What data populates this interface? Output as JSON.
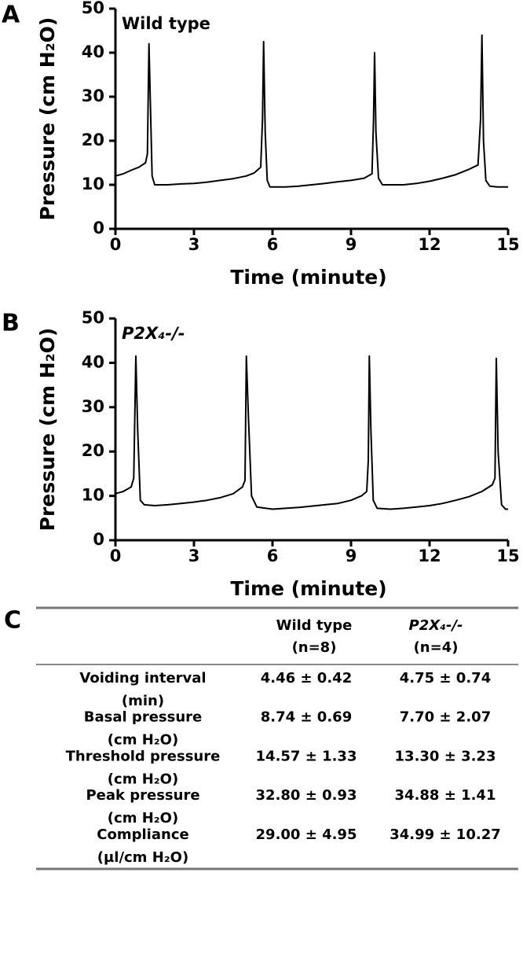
{
  "chart_data": [
    {
      "panel": "A",
      "type": "line",
      "annotation": "Wild type",
      "xlabel": "Time (minute)",
      "ylabel": "Pressure (cm H₂O)",
      "x": [
        0,
        0.3,
        0.6,
        0.9,
        1.15,
        1.22,
        1.28,
        1.33,
        1.4,
        1.5,
        2,
        2.5,
        3,
        3.5,
        4,
        4.5,
        5,
        5.3,
        5.55,
        5.62,
        5.66,
        5.72,
        5.8,
        5.9,
        6.5,
        7,
        7.5,
        8,
        8.5,
        9,
        9.5,
        9.8,
        9.86,
        9.9,
        9.95,
        10.05,
        10.2,
        10.6,
        11,
        11.5,
        12,
        12.5,
        13,
        13.5,
        13.85,
        13.95,
        14.0,
        14.06,
        14.15,
        14.3,
        14.6,
        15
      ],
      "values": [
        12,
        12.5,
        13.3,
        14,
        15,
        17,
        42,
        30,
        12,
        10,
        10,
        10.2,
        10.3,
        10.6,
        11,
        11.4,
        12,
        12.7,
        14,
        25,
        42.5,
        22,
        11,
        9.5,
        9.5,
        9.7,
        10,
        10.3,
        10.7,
        11,
        11.5,
        12.5,
        25,
        40,
        22,
        11.5,
        10,
        10,
        10,
        10.3,
        10.8,
        11.5,
        12.3,
        13.5,
        14.5,
        25,
        44,
        20,
        11,
        9.7,
        9.5,
        9.5
      ],
      "color": "#000000",
      "xlim": [
        0,
        15
      ],
      "ylim": [
        0,
        50
      ],
      "xticks": [
        0,
        3,
        6,
        9,
        12,
        15
      ],
      "yticks": [
        0,
        10,
        20,
        30,
        40,
        50
      ]
    },
    {
      "panel": "B",
      "type": "line",
      "annotation": "P2X₄-/-",
      "xlabel": "Time (minute)",
      "ylabel": "Pressure (cm H₂O)",
      "x": [
        0,
        0.3,
        0.6,
        0.7,
        0.78,
        0.85,
        0.95,
        1.1,
        1.5,
        2,
        2.5,
        3,
        3.5,
        4,
        4.5,
        4.85,
        4.95,
        5.0,
        5.08,
        5.2,
        5.4,
        6,
        6.5,
        7,
        7.5,
        8,
        8.5,
        9,
        9.4,
        9.6,
        9.66,
        9.7,
        9.76,
        9.85,
        10.0,
        10.5,
        11,
        11.5,
        12,
        12.5,
        13,
        13.5,
        14,
        14.4,
        14.5,
        14.55,
        14.62,
        14.75,
        14.9,
        15
      ],
      "values": [
        10.5,
        11,
        12,
        14,
        41.5,
        25,
        9,
        8,
        7.8,
        8,
        8.3,
        8.6,
        9,
        9.6,
        10.5,
        12,
        13.5,
        41.5,
        28,
        10,
        7.5,
        7,
        7.2,
        7.4,
        7.7,
        8,
        8.3,
        9,
        10,
        11,
        18,
        41.5,
        25,
        9,
        7.2,
        7,
        7.2,
        7.5,
        7.8,
        8.3,
        9,
        9.8,
        11,
        12.5,
        14,
        41,
        20,
        8,
        7,
        7
      ],
      "color": "#000000",
      "xlim": [
        0,
        15
      ],
      "ylim": [
        0,
        50
      ],
      "xticks": [
        0,
        3,
        6,
        9,
        12,
        15
      ],
      "yticks": [
        0,
        10,
        20,
        30,
        40,
        50
      ]
    }
  ],
  "table": {
    "panel": "C",
    "columns": [
      {
        "name": "Wild type",
        "n": "(n=8)"
      },
      {
        "name": "P2X₄-/-",
        "n": "(n=4)"
      }
    ],
    "rows": [
      {
        "label": "Voiding interval",
        "unit": "(min)",
        "values": [
          "4.46 ± 0.42",
          "4.75 ± 0.74"
        ]
      },
      {
        "label": "Basal pressure",
        "unit": "(cm H₂O)",
        "values": [
          "8.74 ± 0.69",
          "7.70 ± 2.07"
        ]
      },
      {
        "label": "Threshold pressure",
        "unit": "(cm H₂O)",
        "values": [
          "14.57 ± 1.33",
          "13.30 ± 3.23"
        ]
      },
      {
        "label": "Peak pressure",
        "unit": "(cm H₂O)",
        "values": [
          "32.80 ± 0.93",
          "34.88 ± 1.41"
        ]
      },
      {
        "label": "Compliance",
        "unit": "(µl/cm H₂O)",
        "values": [
          "29.00 ± 4.95",
          "34.99 ± 10.27"
        ]
      }
    ]
  }
}
